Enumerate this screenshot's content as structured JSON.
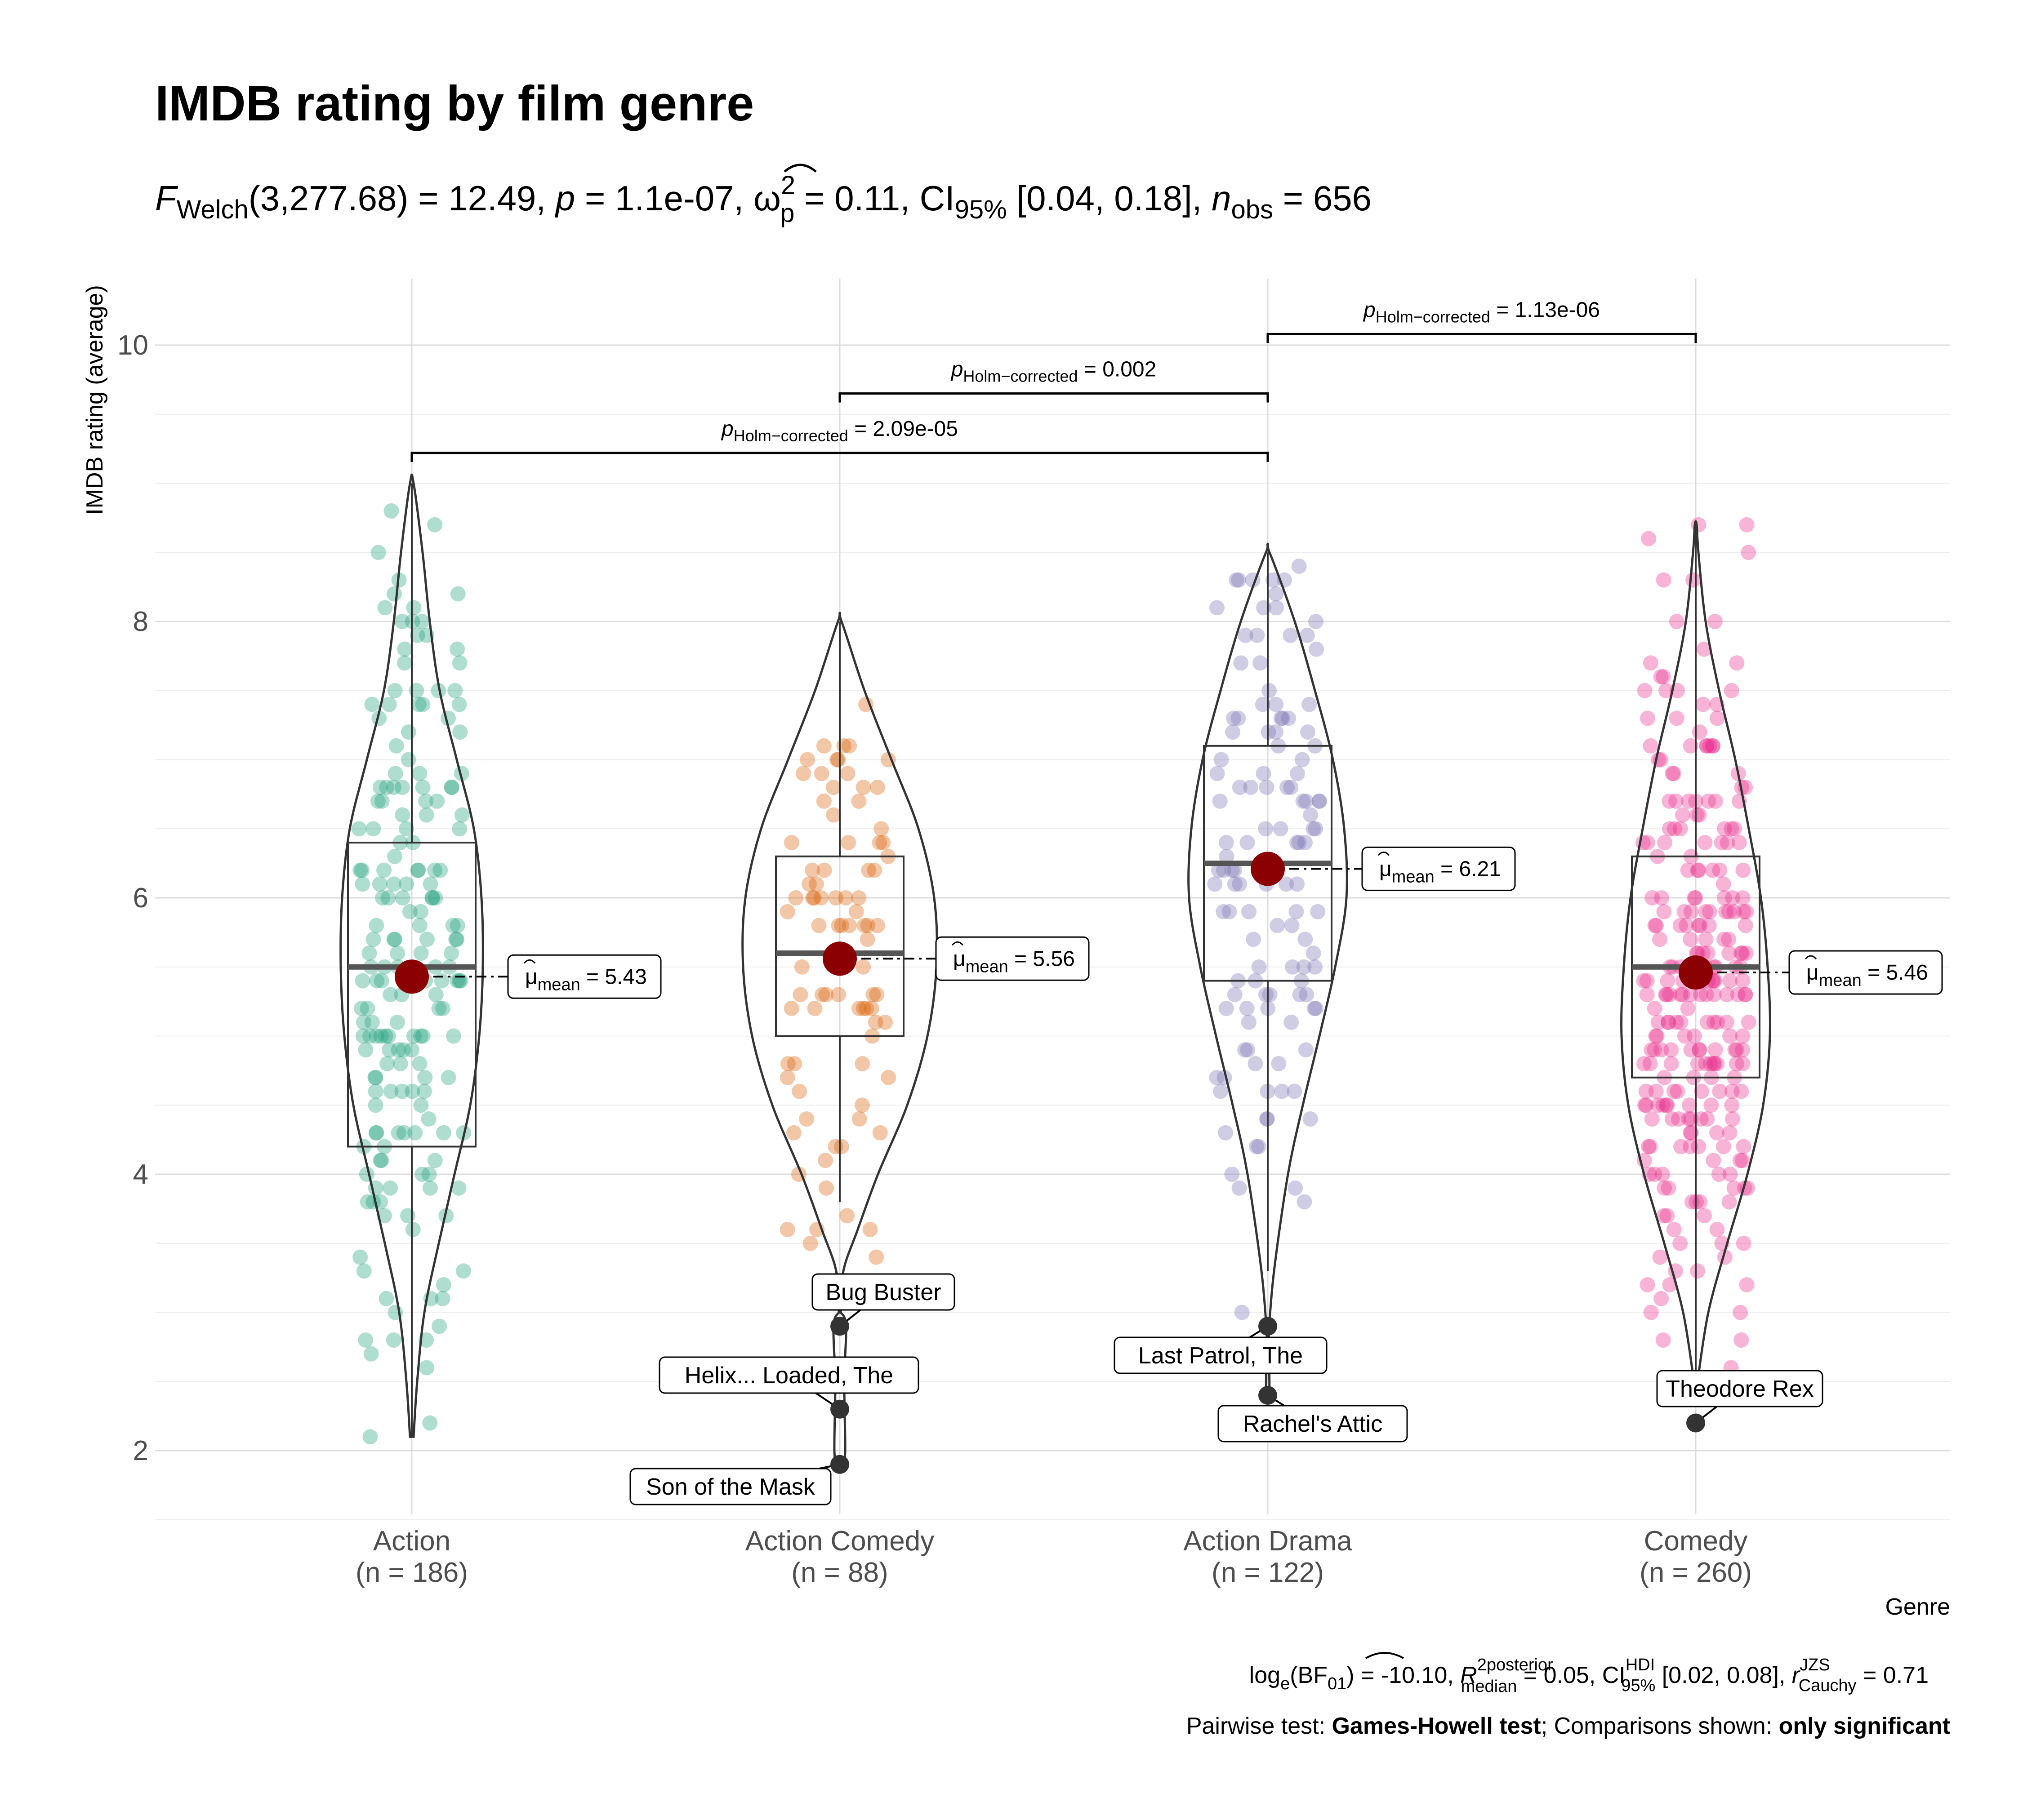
{
  "chart_data": {
    "type": "violin-box",
    "title": "IMDB rating by film genre",
    "subtitle": {
      "f_sym": "F",
      "f_sub": "Welch",
      "f_stat": "(3,277.68) = 12.49, ",
      "p_sym": "p",
      "p_val": " = 1.1e-07, ",
      "omega_sym": "ω",
      "omega_sub": "p",
      "omega_sup": "2",
      "omega_val": " = 0.11, CI",
      "ci_sub": "95%",
      "ci_val": " [0.04, 0.18], ",
      "n_sym": "n",
      "n_sub": "obs",
      "n_val": " = 656"
    },
    "xlabel": "Genre",
    "ylabel": "IMDB rating (average)",
    "ylim": [
      1.5,
      10.5
    ],
    "yticks": [
      "2",
      "4",
      "6",
      "8",
      "10"
    ],
    "ytick_values": [
      2,
      4,
      6,
      8,
      10
    ],
    "groups": [
      {
        "name": "Action",
        "n_label": "(n = 186)",
        "color": "#1b9e77",
        "n": 186,
        "q1": 4.2,
        "median": 5.5,
        "q3": 6.4,
        "whisker_low": 2.1,
        "whisker_high": 9.0,
        "mean": 5.43,
        "mean_label": "5.43"
      },
      {
        "name": "Action Comedy",
        "n_label": "(n = 88)",
        "color": "#d95f02",
        "n": 88,
        "q1": 5.0,
        "median": 5.6,
        "q3": 6.3,
        "whisker_low": 3.8,
        "whisker_high": 8.0,
        "mean": 5.56,
        "mean_label": "5.56"
      },
      {
        "name": "Action Drama",
        "n_label": "(n = 122)",
        "color": "#7570b3",
        "n": 122,
        "q1": 5.4,
        "median": 6.25,
        "q3": 7.1,
        "whisker_low": 3.3,
        "whisker_high": 8.5,
        "mean": 6.21,
        "mean_label": "6.21"
      },
      {
        "name": "Comedy",
        "n_label": "(n = 260)",
        "color": "#e7298a",
        "n": 260,
        "q1": 4.7,
        "median": 5.5,
        "q3": 6.3,
        "whisker_low": 2.5,
        "whisker_high": 8.7,
        "mean": 5.46,
        "mean_label": "5.46"
      }
    ],
    "mean_symbol": "μ",
    "mean_sub": "mean",
    "outliers": [
      {
        "group": 1,
        "y": 2.9,
        "label": "Bug Buster"
      },
      {
        "group": 1,
        "y": 2.3,
        "label": "Helix... Loaded, The"
      },
      {
        "group": 1,
        "y": 1.9,
        "label": "Son of the Mask"
      },
      {
        "group": 2,
        "y": 2.9,
        "label": "Last Patrol, The"
      },
      {
        "group": 2,
        "y": 2.4,
        "label": "Rachel's Attic"
      },
      {
        "group": 3,
        "y": 2.2,
        "label": "Theodore Rex"
      }
    ],
    "pairwise": [
      {
        "from": 0,
        "to": 2,
        "y": 9.22,
        "p_sym": "p",
        "p_sub": "Holm−corrected",
        "p_value": " = 2.09e-05"
      },
      {
        "from": 1,
        "to": 2,
        "y": 9.65,
        "p_sym": "p",
        "p_sub": "Holm−corrected",
        "p_value": " = 0.002"
      },
      {
        "from": 2,
        "to": 3,
        "y": 10.08,
        "p_sym": "p",
        "p_sub": "Holm−corrected",
        "p_value": " = 1.13e-06"
      }
    ],
    "caption": {
      "bf_pre": "log",
      "bf_sub": "e",
      "bf_val": "(BF",
      "bf_sub2": "01",
      "bf_end": ") = -10.10, ",
      "r2_sym": "R",
      "r2_sup": "2",
      "r2_sup2": "posterior",
      "r2_sub": "median",
      "r2_val": " = 0.05, CI",
      "ci_sup": "HDI",
      "ci_sub": "95%",
      "ci_val": " [0.02, 0.08], ",
      "r_sym": "r",
      "r_sup": "JZS",
      "r_sub": "Cauchy",
      "r_val": " = 0.71",
      "line2_a": "Pairwise test: ",
      "line2_b": "Games-Howell test",
      "line2_c": "; Comparisons shown: ",
      "line2_d": "only significant"
    },
    "grid": true,
    "legend": "none"
  }
}
